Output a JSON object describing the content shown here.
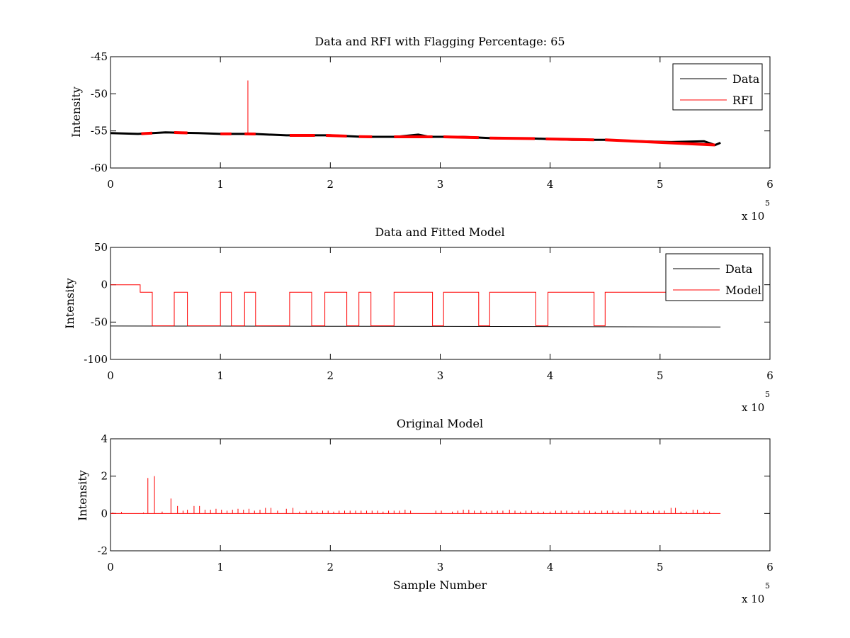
{
  "chart_data": [
    {
      "type": "line",
      "title": "Data and RFI with Flagging Percentage: 65",
      "xlabel": "",
      "ylabel": "Intensity",
      "xlim": [
        0,
        600000
      ],
      "ylim": [
        -60,
        -45
      ],
      "x_ticks": [
        "0",
        "1",
        "2",
        "3",
        "4",
        "5",
        "6"
      ],
      "y_ticks": [
        "-60",
        "-55",
        "-50",
        "-45"
      ],
      "x_exponent": {
        "base": "x 10",
        "power": "5"
      },
      "legend_position": "top-right",
      "legend": [
        "Data",
        "RFI"
      ],
      "series": [
        {
          "name": "Data",
          "color": "#000000",
          "points": [
            [
              0,
              -55.3
            ],
            [
              25000,
              -55.4
            ],
            [
              50000,
              -55.2
            ],
            [
              80000,
              -55.3
            ],
            [
              100000,
              -55.4
            ],
            [
              130000,
              -55.4
            ],
            [
              160000,
              -55.6
            ],
            [
              200000,
              -55.6
            ],
            [
              230000,
              -55.8
            ],
            [
              260000,
              -55.8
            ],
            [
              280000,
              -55.5
            ],
            [
              290000,
              -55.8
            ],
            [
              320000,
              -55.8
            ],
            [
              350000,
              -56.0
            ],
            [
              380000,
              -56.0
            ],
            [
              420000,
              -56.2
            ],
            [
              450000,
              -56.2
            ],
            [
              480000,
              -56.4
            ],
            [
              510000,
              -56.5
            ],
            [
              540000,
              -56.4
            ],
            [
              550000,
              -56.9
            ],
            [
              555000,
              -56.6
            ]
          ]
        },
        {
          "name": "RFI",
          "color": "#ff0000",
          "segments": [
            [
              28000,
              38000
            ],
            [
              58000,
              70000
            ],
            [
              100000,
              110000
            ],
            [
              122000,
              132000
            ],
            [
              163000,
              186000
            ],
            [
              196000,
              215000
            ],
            [
              226000,
              238000
            ],
            [
              258000,
              293000
            ],
            [
              303000,
              335000
            ],
            [
              345000,
              386000
            ],
            [
              396000,
              440000
            ],
            [
              450000,
              550000
            ]
          ],
          "spike": {
            "x": 125000,
            "y": -48.2
          }
        }
      ]
    },
    {
      "type": "line",
      "title": "Data and Fitted Model",
      "xlabel": "",
      "ylabel": "Intensity",
      "xlim": [
        0,
        600000
      ],
      "ylim": [
        -100,
        50
      ],
      "x_ticks": [
        "0",
        "1",
        "2",
        "3",
        "4",
        "5",
        "6"
      ],
      "y_ticks": [
        "-100",
        "-50",
        "0",
        "50"
      ],
      "x_exponent": {
        "base": "x 10",
        "power": "5"
      },
      "legend_position": "top-right",
      "legend": [
        "Data",
        "Model"
      ],
      "series": [
        {
          "name": "Data",
          "color": "#000000",
          "points": [
            [
              0,
              -55.3
            ],
            [
              100000,
              -55.4
            ],
            [
              200000,
              -55.6
            ],
            [
              300000,
              -55.8
            ],
            [
              400000,
              -56.0
            ],
            [
              500000,
              -56.4
            ],
            [
              555000,
              -56.6
            ]
          ]
        },
        {
          "name": "Model",
          "color": "#ff0000",
          "points": [
            [
              0,
              0
            ],
            [
              27000,
              0
            ],
            [
              27000,
              -10
            ],
            [
              38000,
              -10
            ],
            [
              38000,
              -55
            ],
            [
              58000,
              -55
            ],
            [
              58000,
              -10
            ],
            [
              70000,
              -10
            ],
            [
              70000,
              -55
            ],
            [
              100000,
              -55
            ],
            [
              100000,
              -10
            ],
            [
              110000,
              -10
            ],
            [
              110000,
              -55
            ],
            [
              122000,
              -55
            ],
            [
              122000,
              -10
            ],
            [
              132000,
              -10
            ],
            [
              132000,
              -55
            ],
            [
              163000,
              -55
            ],
            [
              163000,
              -10
            ],
            [
              183000,
              -10
            ],
            [
              183000,
              -55
            ],
            [
              195000,
              -55
            ],
            [
              195000,
              -10
            ],
            [
              215000,
              -10
            ],
            [
              215000,
              -55
            ],
            [
              226000,
              -55
            ],
            [
              226000,
              -10
            ],
            [
              237000,
              -10
            ],
            [
              237000,
              -55
            ],
            [
              258000,
              -55
            ],
            [
              258000,
              -10
            ],
            [
              293000,
              -10
            ],
            [
              293000,
              -55
            ],
            [
              303000,
              -55
            ],
            [
              303000,
              -10
            ],
            [
              335000,
              -10
            ],
            [
              335000,
              -55
            ],
            [
              345000,
              -55
            ],
            [
              345000,
              -10
            ],
            [
              387000,
              -10
            ],
            [
              387000,
              -55
            ],
            [
              398000,
              -55
            ],
            [
              398000,
              -10
            ],
            [
              440000,
              -10
            ],
            [
              440000,
              -55
            ],
            [
              450000,
              -55
            ],
            [
              450000,
              -10
            ],
            [
              590000,
              -10
            ]
          ]
        }
      ]
    },
    {
      "type": "line",
      "title": "Original Model",
      "xlabel": "Sample Number",
      "ylabel": "Intensity",
      "xlim": [
        0,
        600000
      ],
      "ylim": [
        -2,
        4
      ],
      "x_ticks": [
        "0",
        "1",
        "2",
        "3",
        "4",
        "5",
        "6"
      ],
      "y_ticks": [
        "-2",
        "0",
        "2",
        "4"
      ],
      "x_exponent": {
        "base": "x 10",
        "power": "5"
      },
      "series": [
        {
          "name": "",
          "color": "#ff0000",
          "baseline": 0,
          "x_end": 555000,
          "spikes": [
            [
              2000,
              0.05
            ],
            [
              10000,
              0.08
            ],
            [
              30000,
              0.05
            ],
            [
              34000,
              1.9
            ],
            [
              40000,
              2.0
            ],
            [
              47000,
              0.1
            ],
            [
              55000,
              0.8
            ],
            [
              61000,
              0.4
            ],
            [
              66000,
              0.15
            ],
            [
              70000,
              0.2
            ],
            [
              76000,
              0.4
            ],
            [
              81000,
              0.4
            ],
            [
              86000,
              0.2
            ],
            [
              91000,
              0.2
            ],
            [
              96000,
              0.25
            ],
            [
              101000,
              0.2
            ],
            [
              106000,
              0.15
            ],
            [
              111000,
              0.2
            ],
            [
              116000,
              0.25
            ],
            [
              121000,
              0.2
            ],
            [
              126000,
              0.25
            ],
            [
              131000,
              0.15
            ],
            [
              136000,
              0.2
            ],
            [
              141000,
              0.3
            ],
            [
              146000,
              0.3
            ],
            [
              152000,
              0.15
            ],
            [
              160000,
              0.25
            ],
            [
              166000,
              0.3
            ],
            [
              172000,
              0.1
            ],
            [
              178000,
              0.15
            ],
            [
              183000,
              0.15
            ],
            [
              188000,
              0.1
            ],
            [
              193000,
              0.15
            ],
            [
              198000,
              0.15
            ],
            [
              203000,
              0.1
            ],
            [
              208000,
              0.15
            ],
            [
              213000,
              0.15
            ],
            [
              218000,
              0.15
            ],
            [
              223000,
              0.15
            ],
            [
              228000,
              0.15
            ],
            [
              233000,
              0.15
            ],
            [
              238000,
              0.15
            ],
            [
              243000,
              0.15
            ],
            [
              248000,
              0.1
            ],
            [
              253000,
              0.15
            ],
            [
              258000,
              0.15
            ],
            [
              263000,
              0.15
            ],
            [
              268000,
              0.2
            ],
            [
              273000,
              0.15
            ],
            [
              296000,
              0.15
            ],
            [
              301000,
              0.15
            ],
            [
              311000,
              0.1
            ],
            [
              316000,
              0.15
            ],
            [
              321000,
              0.2
            ],
            [
              326000,
              0.2
            ],
            [
              331000,
              0.15
            ],
            [
              337000,
              0.15
            ],
            [
              342000,
              0.1
            ],
            [
              347000,
              0.15
            ],
            [
              352000,
              0.15
            ],
            [
              357000,
              0.15
            ],
            [
              363000,
              0.2
            ],
            [
              368000,
              0.15
            ],
            [
              373000,
              0.1
            ],
            [
              378000,
              0.15
            ],
            [
              383000,
              0.15
            ],
            [
              389000,
              0.1
            ],
            [
              394000,
              0.1
            ],
            [
              400000,
              0.1
            ],
            [
              405000,
              0.15
            ],
            [
              410000,
              0.15
            ],
            [
              415000,
              0.15
            ],
            [
              420000,
              0.1
            ],
            [
              426000,
              0.15
            ],
            [
              431000,
              0.15
            ],
            [
              436000,
              0.15
            ],
            [
              441000,
              0.1
            ],
            [
              447000,
              0.15
            ],
            [
              452000,
              0.15
            ],
            [
              457000,
              0.15
            ],
            [
              462000,
              0.1
            ],
            [
              468000,
              0.2
            ],
            [
              473000,
              0.2
            ],
            [
              478000,
              0.15
            ],
            [
              483000,
              0.15
            ],
            [
              489000,
              0.1
            ],
            [
              494000,
              0.15
            ],
            [
              499000,
              0.15
            ],
            [
              504000,
              0.15
            ],
            [
              510000,
              0.3
            ],
            [
              514000,
              0.3
            ],
            [
              519000,
              0.1
            ],
            [
              524000,
              0.1
            ],
            [
              530000,
              0.2
            ],
            [
              534000,
              0.2
            ],
            [
              540000,
              0.1
            ],
            [
              545000,
              0.1
            ]
          ]
        }
      ]
    }
  ]
}
